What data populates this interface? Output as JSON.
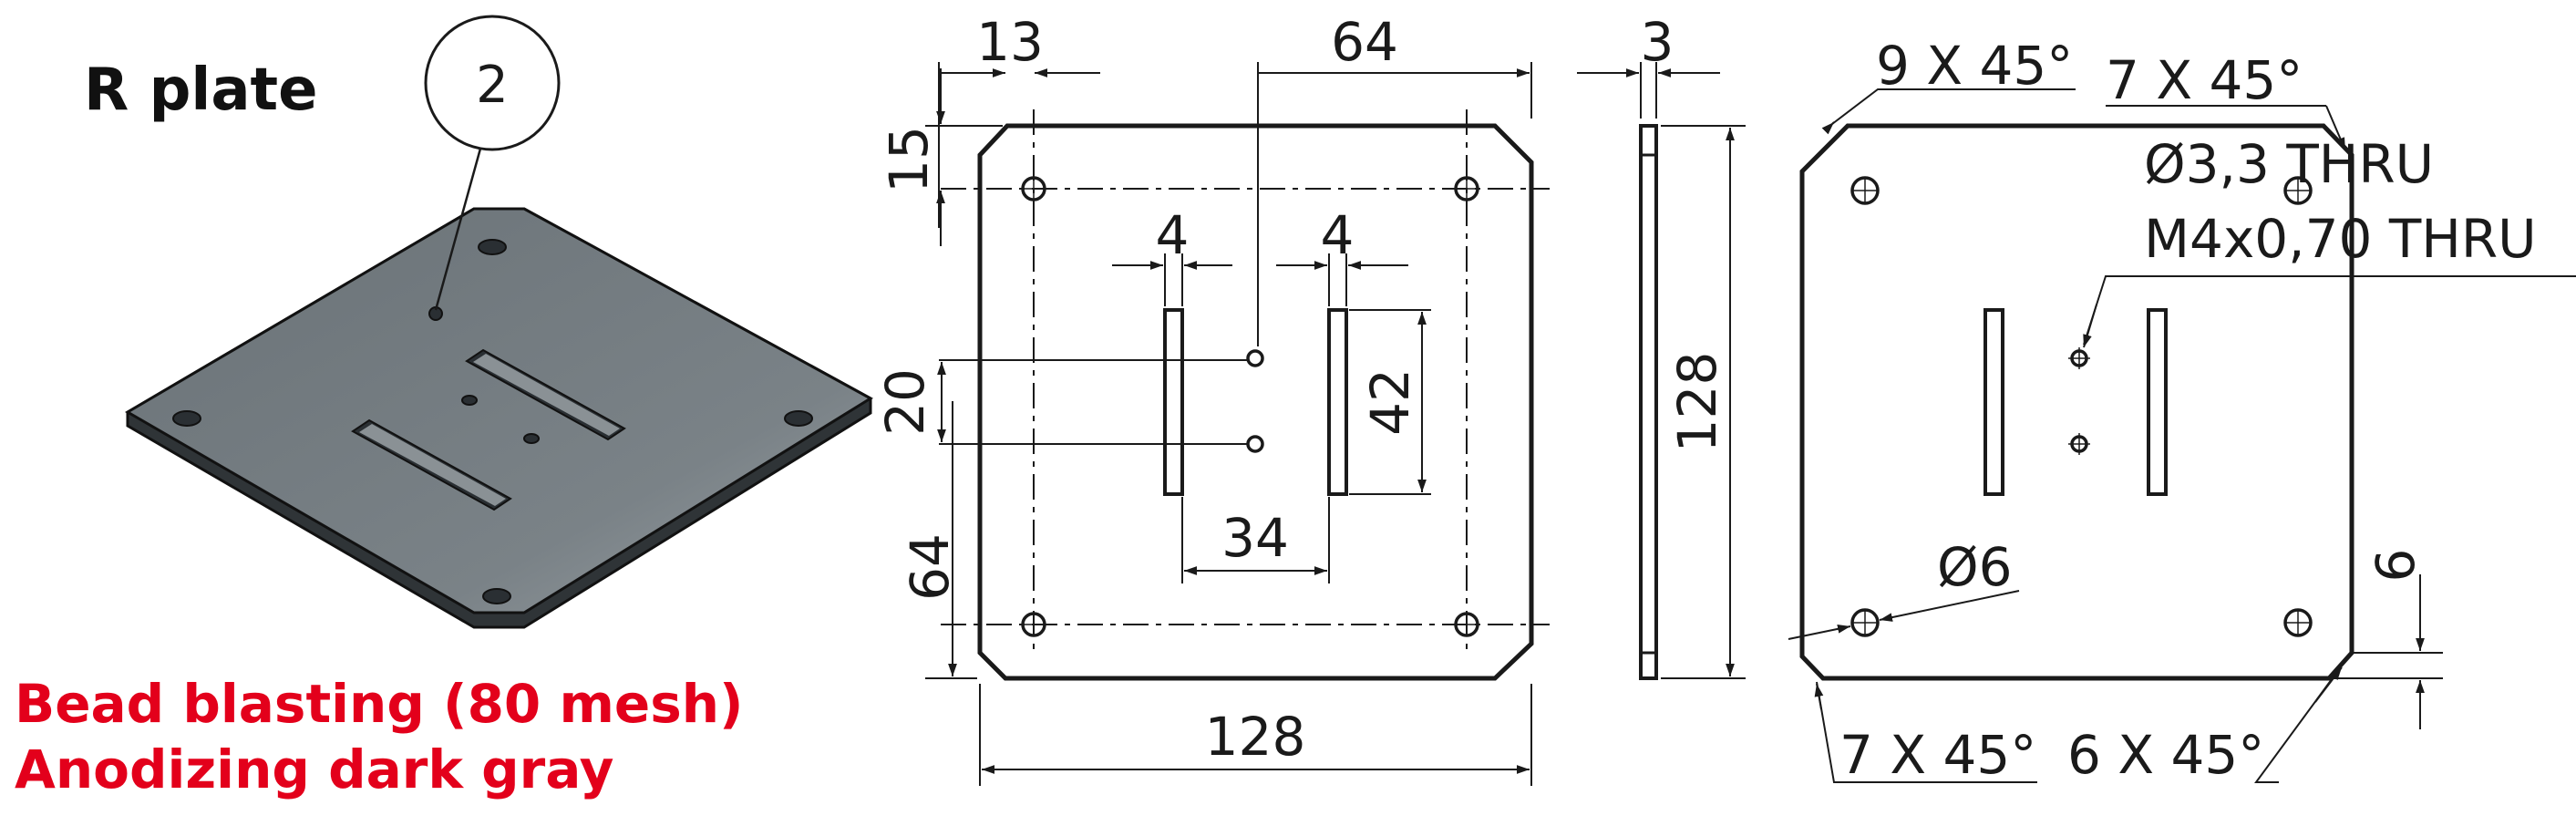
{
  "title": "R plate",
  "balloon": "2",
  "finish": [
    "Bead blasting (80 mesh)",
    "Anodizing dark gray"
  ],
  "dimensions": {
    "hole_offset_x": "13",
    "hole_spacing_half": "64",
    "thickness": "3",
    "hole_offset_y": "15",
    "slot_width_left": "4",
    "slot_width_right": "4",
    "center_holes_spacing": "20",
    "slot_length": "42",
    "slot_spacing": "34",
    "lower_offset": "64",
    "plate_width": "128",
    "plate_height": "128"
  },
  "callouts": {
    "chamfer_top_left": "9 X 45°",
    "chamfer_top_right": "7 X 45°",
    "thru_hole": "Ø3,3 THRU",
    "thread": "M4x0,70 THRU",
    "hole_dia": "Ø6",
    "chamfer_bottom_left": "7 X 45°",
    "chamfer_bottom_right": "6 X 45°",
    "edge_offset": "6"
  },
  "colors": {
    "plate_top": "#6c7479",
    "plate_edge": "#3c4246",
    "finish_text": "#e3001b",
    "line": "#1a1a1a"
  }
}
